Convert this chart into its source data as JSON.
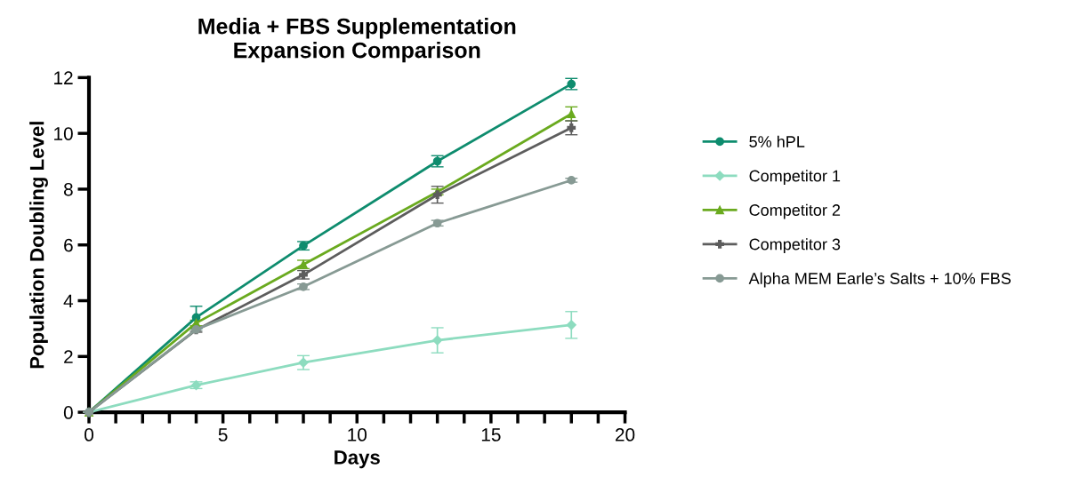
{
  "chart_data": {
    "type": "line",
    "title": "Media + FBS Supplementation\nExpansion Comparison",
    "xlabel": "Days",
    "ylabel": "Population Doubling Level",
    "x": [
      0,
      4,
      8,
      13,
      18
    ],
    "series": [
      {
        "name": "5% hPL",
        "color": "#0e8c6e",
        "marker": "circle",
        "values": [
          0,
          3.4,
          5.97,
          9.0,
          11.77
        ],
        "errors": [
          null,
          0.4,
          0.15,
          0.2,
          0.2
        ]
      },
      {
        "name": "Competitor 1",
        "color": "#8ddcbf",
        "marker": "diamond",
        "values": [
          0,
          0.97,
          1.78,
          2.58,
          3.13
        ],
        "errors": [
          null,
          0.12,
          0.25,
          0.45,
          0.48
        ]
      },
      {
        "name": "Competitor 2",
        "color": "#6aaa1f",
        "marker": "triangle",
        "values": [
          0,
          3.2,
          5.3,
          7.9,
          10.7
        ],
        "errors": [
          null,
          0.1,
          0.15,
          0.1,
          0.25
        ]
      },
      {
        "name": "Competitor 3",
        "color": "#5d5d5d",
        "marker": "cross",
        "values": [
          0,
          2.95,
          4.93,
          7.8,
          10.2
        ],
        "errors": [
          null,
          0.08,
          0.15,
          0.3,
          0.25
        ]
      },
      {
        "name": "Alpha MEM Earle’s Salts + 10% FBS",
        "color": "#879a94",
        "marker": "circle",
        "values": [
          0,
          2.97,
          4.5,
          6.78,
          8.32
        ],
        "errors": [
          null,
          0.05,
          0.1,
          0.1,
          0.07
        ]
      }
    ],
    "xlim": [
      0,
      20
    ],
    "ylim": [
      0,
      12
    ],
    "xticks": [
      0,
      {
        "value": 1,
        "label": null
      },
      {
        "value": 2,
        "label": null
      },
      {
        "value": 3,
        "label": null
      },
      {
        "value": 4,
        "label": null
      },
      5,
      {
        "value": 6,
        "label": null
      },
      {
        "value": 7,
        "label": null
      },
      {
        "value": 8,
        "label": null
      },
      {
        "value": 9,
        "label": null
      },
      10,
      {
        "value": 11,
        "label": null
      },
      {
        "value": 12,
        "label": null
      },
      {
        "value": 13,
        "label": null
      },
      {
        "value": 14,
        "label": null
      },
      15,
      {
        "value": 16,
        "label": null
      },
      {
        "value": 17,
        "label": null
      },
      {
        "value": 18,
        "label": null
      },
      {
        "value": 19,
        "label": null
      },
      20
    ],
    "yticks": [
      0,
      2,
      4,
      6,
      8,
      10,
      12
    ],
    "grid": false,
    "legend": "right",
    "line_style": "solid"
  }
}
